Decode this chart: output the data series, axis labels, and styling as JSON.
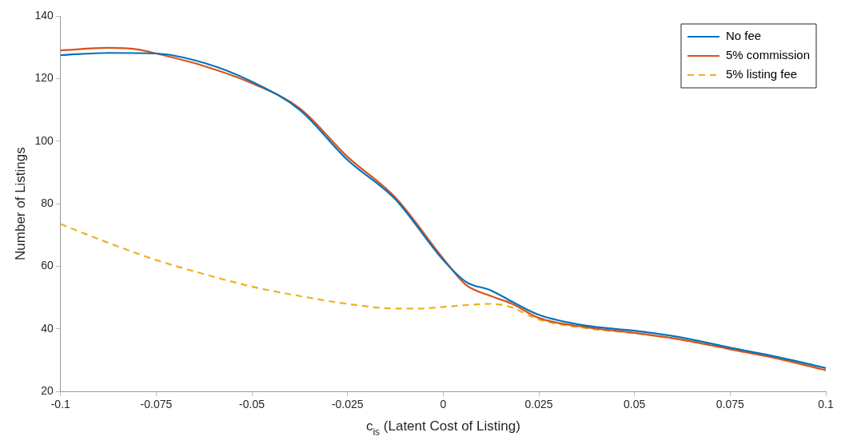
{
  "chart_data": {
    "type": "line",
    "xlabel": "c$_{is}$ (Latent Cost of Listing)",
    "ylabel": "Number of Listings",
    "xlim": [
      -0.1,
      0.1
    ],
    "xticks": [
      -0.1,
      -0.075,
      -0.05,
      -0.025,
      0,
      0.025,
      0.05,
      0.075,
      0.1
    ],
    "ylim": [
      20,
      140
    ],
    "yticks": [
      20,
      40,
      60,
      80,
      100,
      120,
      140
    ],
    "grid": false,
    "legend": "top right",
    "marker": "none",
    "series": [
      {
        "name": "No fee",
        "color": "#0072bd",
        "line_style": "solid",
        "x": [
          -0.1,
          -0.0875,
          -0.075,
          -0.0625,
          -0.05,
          -0.0375,
          -0.025,
          -0.0125,
          0,
          0.006,
          0.0125,
          0.018,
          0.025,
          0.0375,
          0.05,
          0.0625,
          0.075,
          0.0875,
          0.1
        ],
        "values": [
          127.5,
          128.2,
          128,
          125,
          119,
          110,
          94,
          81.4,
          62,
          55,
          52.3,
          48.7,
          44.5,
          41,
          39.4,
          37.2,
          34,
          31,
          27.5
        ]
      },
      {
        "name": "5% commission",
        "color": "#d95319",
        "line_style": "solid",
        "x": [
          -0.1,
          -0.0875,
          -0.08,
          -0.075,
          -0.0625,
          -0.05,
          -0.0375,
          -0.025,
          -0.0125,
          0,
          0.006,
          0.0125,
          0.018,
          0.025,
          0.0375,
          0.05,
          0.0625,
          0.075,
          0.0875,
          0.1
        ],
        "values": [
          129,
          129.8,
          129.3,
          128,
          124,
          118.5,
          110.5,
          95,
          82,
          62.5,
          54,
          50.5,
          48,
          43.5,
          40.5,
          38.7,
          36.5,
          33.5,
          30.5,
          26.8
        ]
      },
      {
        "name": "5% listing fee",
        "color": "#edb120",
        "line_style": "dashed",
        "x": [
          -0.1,
          -0.0875,
          -0.075,
          -0.0625,
          -0.05,
          -0.0375,
          -0.025,
          -0.0125,
          -0.006,
          0,
          0.0125,
          0.0175,
          0.025,
          0.0375,
          0.05,
          0.0625,
          0.075,
          0.0875,
          0.1
        ],
        "values": [
          73.5,
          67.5,
          62,
          57.5,
          53.5,
          50.5,
          48,
          46.5,
          46.5,
          47,
          48,
          47,
          43,
          40.2,
          38.6,
          36.5,
          33.5,
          30.5,
          26.7
        ]
      }
    ]
  }
}
